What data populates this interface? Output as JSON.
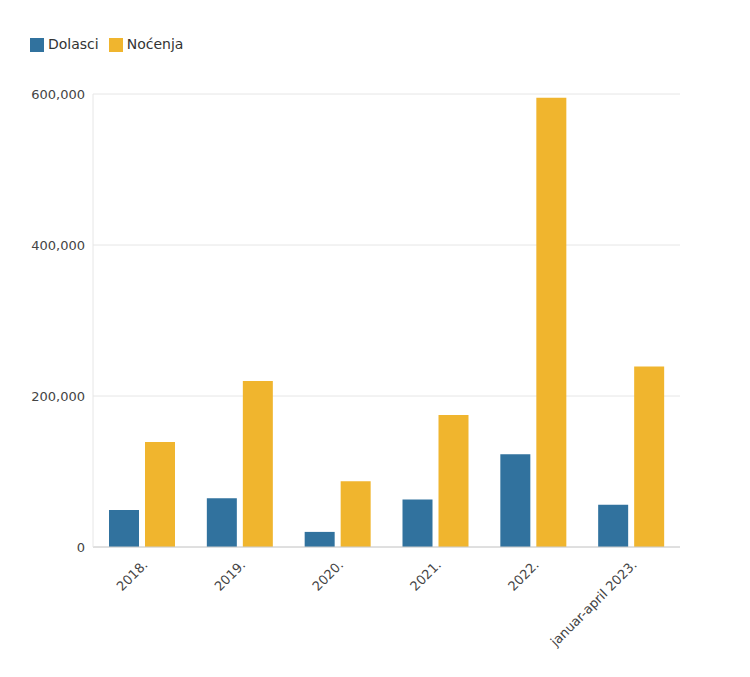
{
  "chart_data": {
    "type": "bar",
    "categories": [
      "2018.",
      "2019.",
      "2020.",
      "2021.",
      "2022.",
      "januar-april 2023."
    ],
    "series": [
      {
        "name": "Dolasci",
        "color": "#31729e",
        "values": [
          49000,
          64500,
          20000,
          63000,
          123000,
          56000
        ]
      },
      {
        "name": "Noćenja",
        "color": "#f0b52e",
        "values": [
          139000,
          220000,
          87000,
          175000,
          595000,
          239000
        ]
      }
    ],
    "ylim": [
      0,
      600000
    ],
    "yticks": [
      0,
      {
        "value": 200000,
        "label": "200,000"
      },
      {
        "value": 400000,
        "label": "400,000"
      },
      {
        "value": 600000,
        "label": "600,000"
      }
    ],
    "grid": true,
    "legend": "top-left"
  }
}
